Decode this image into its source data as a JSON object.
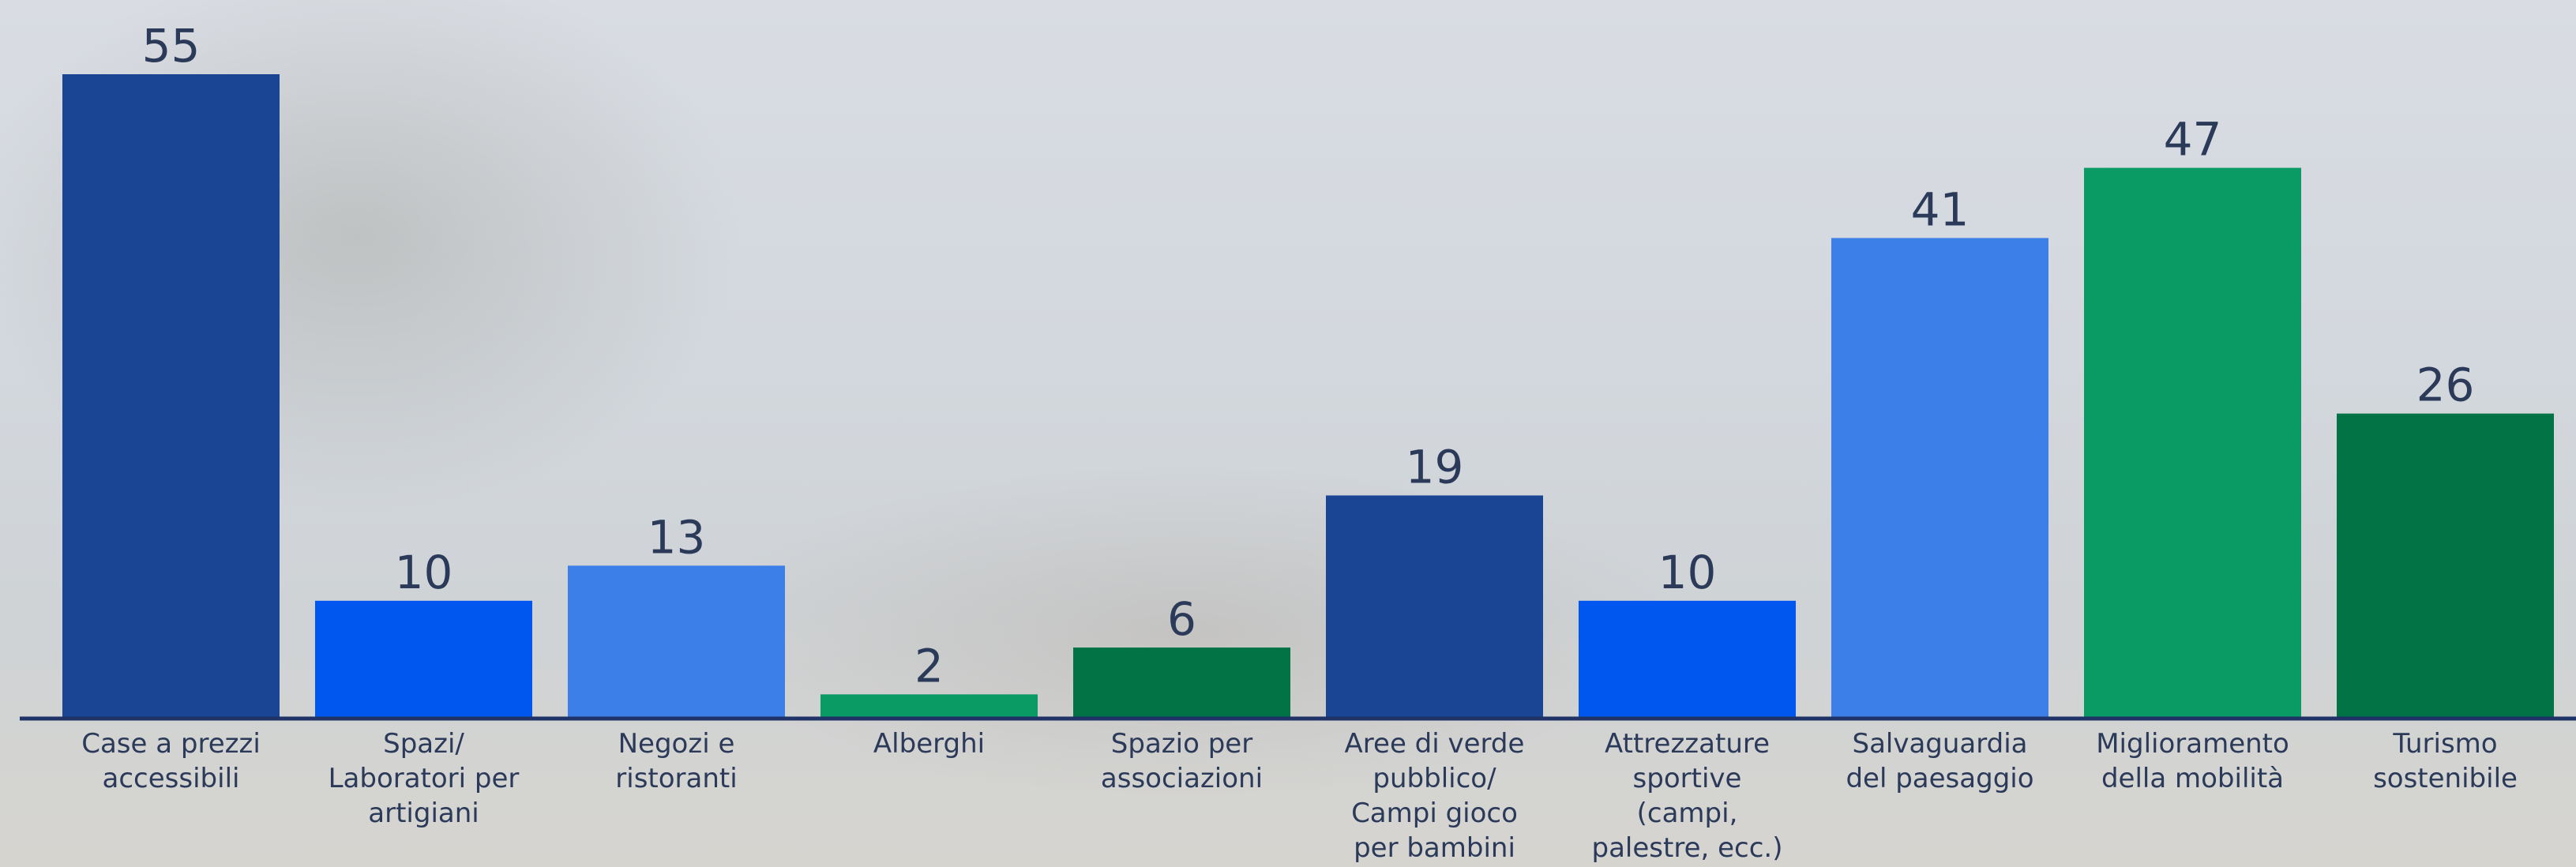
{
  "chart_data": {
    "type": "bar",
    "categories": [
      "Case a prezzi\naccessibili",
      "Spazi/\nLaboratori per\nartigiani",
      "Negozi e\nristoranti",
      "Alberghi",
      "Spazio per\nassociazioni",
      "Aree di verde\npubblico/\nCampi gioco\nper bambini",
      "Attrezzature\nsportive\n(campi,\npalestre, ecc.)",
      "Salvaguardia\ndel paesaggio",
      "Miglioramento\ndella mobilità",
      "Turismo\nsostenibile"
    ],
    "values": [
      55,
      10,
      13,
      2,
      6,
      19,
      10,
      41,
      47,
      26
    ],
    "colors": [
      "#1a4494",
      "#0057f0",
      "#3d7fe8",
      "#0a9a64",
      "#017345",
      "#1a4494",
      "#0057f0",
      "#3d7fe8",
      "#0a9a64",
      "#017345"
    ]
  }
}
